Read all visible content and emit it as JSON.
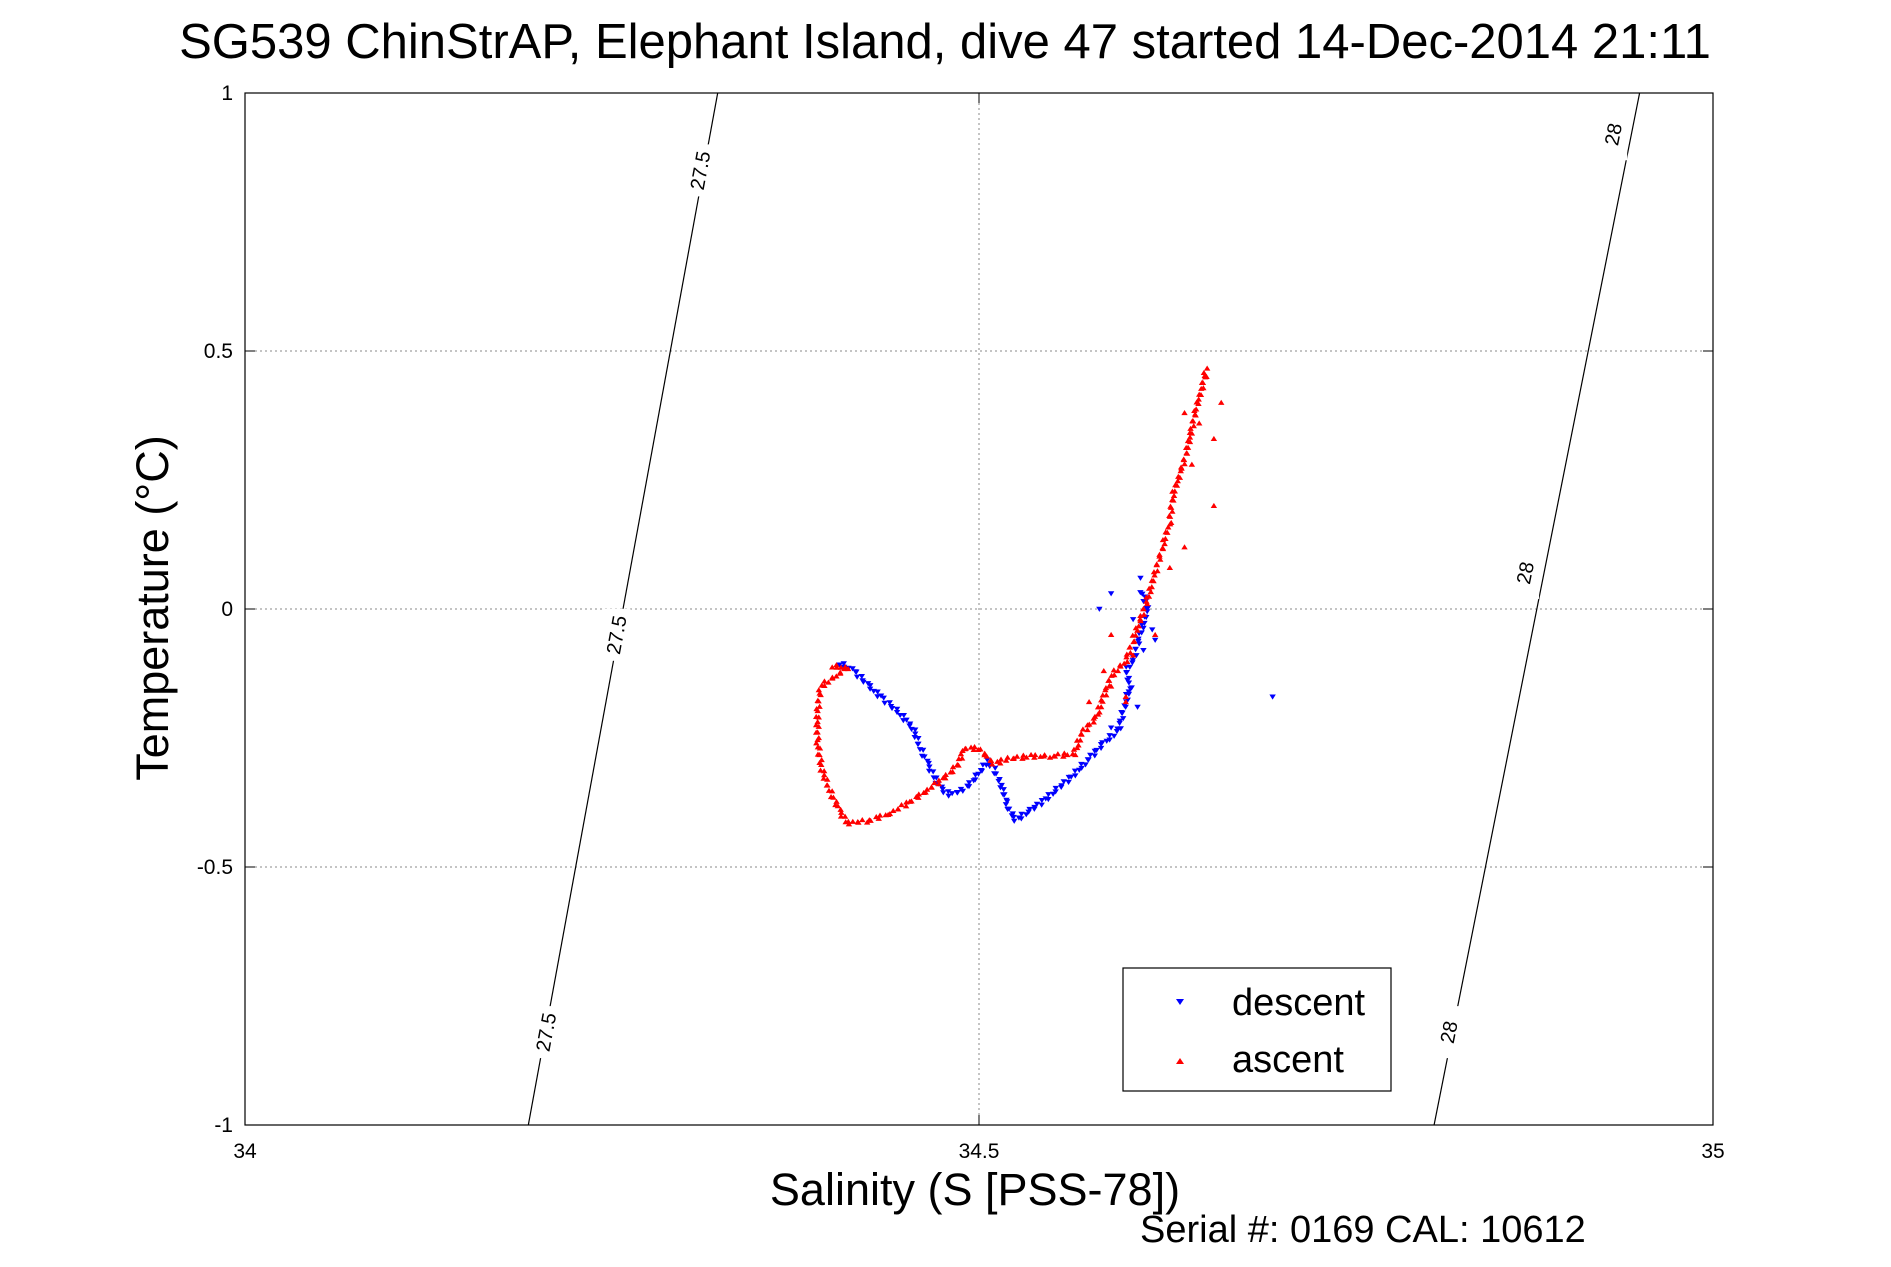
{
  "chart_data": {
    "type": "scatter",
    "title": "SG539 ChinStrAP, Elephant Island, dive 47 started 14-Dec-2014 21:11",
    "xlabel": "Salinity (S [PSS-78])",
    "ylabel": "Temperature (°C)",
    "xlim": [
      34,
      35
    ],
    "ylim": [
      -1,
      1
    ],
    "x_ticks": [
      "34",
      "34.5",
      "35"
    ],
    "y_ticks": [
      "-1",
      "-0.5",
      "0",
      "0.5",
      "1"
    ],
    "grid": true,
    "legend_position": "bottom-right",
    "footer": "Serial #: 0169 CAL: 10612",
    "isopycnals": [
      {
        "label": "27.5",
        "line": [
          {
            "x": 34.193,
            "y": -1.0
          },
          {
            "x": 34.322,
            "y": 1.0
          }
        ],
        "label_points": [
          {
            "x": 34.205,
            "y": -0.82
          },
          {
            "x": 34.253,
            "y": -0.05
          },
          {
            "x": 34.31,
            "y": 0.85
          }
        ]
      },
      {
        "label": "28",
        "line": [
          {
            "x": 34.81,
            "y": -1.0
          },
          {
            "x": 34.95,
            "y": 1.0
          }
        ],
        "label_points": [
          {
            "x": 34.82,
            "y": -0.82
          },
          {
            "x": 34.872,
            "y": 0.07
          },
          {
            "x": 34.932,
            "y": 0.92
          }
        ]
      }
    ],
    "series": [
      {
        "name": "descent",
        "marker": "triangle-down",
        "color": "#0000ff",
        "path": [
          [
            34.405,
            -0.105
          ],
          [
            34.415,
            -0.12
          ],
          [
            34.425,
            -0.15
          ],
          [
            34.435,
            -0.175
          ],
          [
            34.445,
            -0.2
          ],
          [
            34.455,
            -0.23
          ],
          [
            34.46,
            -0.27
          ],
          [
            34.465,
            -0.3
          ],
          [
            34.47,
            -0.33
          ],
          [
            34.475,
            -0.35
          ],
          [
            34.48,
            -0.36
          ],
          [
            34.49,
            -0.35
          ],
          [
            34.5,
            -0.32
          ],
          [
            34.505,
            -0.295
          ],
          [
            34.51,
            -0.31
          ],
          [
            34.515,
            -0.34
          ],
          [
            34.52,
            -0.385
          ],
          [
            34.525,
            -0.41
          ],
          [
            34.535,
            -0.39
          ],
          [
            34.545,
            -0.37
          ],
          [
            34.555,
            -0.345
          ],
          [
            34.565,
            -0.32
          ],
          [
            34.575,
            -0.29
          ],
          [
            34.585,
            -0.26
          ],
          [
            34.595,
            -0.235
          ],
          [
            34.6,
            -0.18
          ],
          [
            34.603,
            -0.15
          ],
          [
            34.6,
            -0.12
          ],
          [
            34.605,
            -0.1
          ],
          [
            34.61,
            -0.05
          ],
          [
            34.615,
            0.0
          ],
          [
            34.61,
            0.04
          ]
        ],
        "scatter": [
          [
            34.59,
            0.03
          ],
          [
            34.582,
            0.0
          ],
          [
            34.61,
            0.06
          ],
          [
            34.605,
            -0.02
          ],
          [
            34.618,
            -0.04
          ],
          [
            34.612,
            -0.08
          ],
          [
            34.602,
            -0.16
          ],
          [
            34.608,
            -0.19
          ],
          [
            34.62,
            -0.06
          ],
          [
            34.597,
            -0.2
          ],
          [
            34.7,
            -0.17
          ],
          [
            34.59,
            -0.23
          ]
        ]
      },
      {
        "name": "ascent",
        "marker": "triangle-up",
        "color": "#ff0000",
        "path": [
          [
            34.4,
            -0.11
          ],
          [
            34.41,
            -0.115
          ],
          [
            34.392,
            -0.15
          ],
          [
            34.39,
            -0.2
          ],
          [
            34.39,
            -0.26
          ],
          [
            34.393,
            -0.31
          ],
          [
            34.398,
            -0.35
          ],
          [
            34.405,
            -0.39
          ],
          [
            34.41,
            -0.415
          ],
          [
            34.425,
            -0.41
          ],
          [
            34.44,
            -0.395
          ],
          [
            34.455,
            -0.37
          ],
          [
            34.465,
            -0.35
          ],
          [
            34.475,
            -0.33
          ],
          [
            34.485,
            -0.305
          ],
          [
            34.49,
            -0.27
          ],
          [
            34.5,
            -0.27
          ],
          [
            34.51,
            -0.3
          ],
          [
            34.52,
            -0.29
          ],
          [
            34.535,
            -0.285
          ],
          [
            34.55,
            -0.285
          ],
          [
            34.565,
            -0.28
          ],
          [
            34.57,
            -0.24
          ],
          [
            34.58,
            -0.21
          ],
          [
            34.585,
            -0.17
          ],
          [
            34.59,
            -0.13
          ],
          [
            34.6,
            -0.1
          ],
          [
            34.605,
            -0.06
          ],
          [
            34.61,
            -0.02
          ],
          [
            34.615,
            0.02
          ],
          [
            34.62,
            0.07
          ],
          [
            34.625,
            0.12
          ],
          [
            34.63,
            0.17
          ],
          [
            34.632,
            0.22
          ],
          [
            34.638,
            0.27
          ],
          [
            34.642,
            0.31
          ],
          [
            34.645,
            0.35
          ],
          [
            34.648,
            0.39
          ],
          [
            34.652,
            0.43
          ],
          [
            34.655,
            0.47
          ]
        ],
        "scatter": [
          [
            34.59,
            -0.05
          ],
          [
            34.585,
            -0.12
          ],
          [
            34.59,
            -0.15
          ],
          [
            34.575,
            -0.18
          ],
          [
            34.6,
            -0.17
          ],
          [
            34.62,
            -0.05
          ],
          [
            34.63,
            0.08
          ],
          [
            34.64,
            0.12
          ],
          [
            34.66,
            0.2
          ],
          [
            34.645,
            0.28
          ],
          [
            34.66,
            0.33
          ],
          [
            34.65,
            0.36
          ],
          [
            34.665,
            0.4
          ],
          [
            34.64,
            0.38
          ],
          [
            34.655,
            0.45
          ],
          [
            34.6,
            -0.18
          ],
          [
            34.605,
            -0.09
          ]
        ]
      }
    ]
  }
}
